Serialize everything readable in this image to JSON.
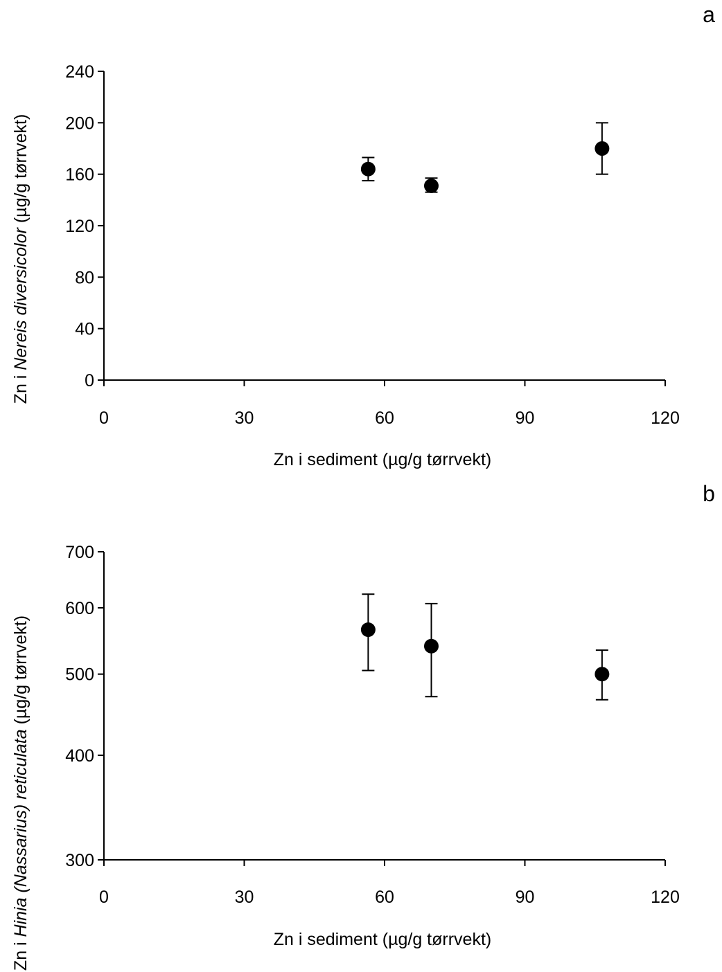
{
  "chart_data": [
    {
      "type": "scatter",
      "panel_label": "a",
      "xlabel": "Zn i sediment (µg/g tørrvekt)",
      "ylabel_parts": [
        {
          "text": "Zn i ",
          "italic": false
        },
        {
          "text": "Nereis diversicolor",
          "italic": true
        },
        {
          "text": " (µg/g tørrvekt)",
          "italic": false
        }
      ],
      "xlim": [
        0,
        120
      ],
      "ylim": [
        0,
        240
      ],
      "y_scale": "linear",
      "xticks": [
        0,
        30,
        60,
        90,
        120
      ],
      "yticks": [
        0,
        40,
        80,
        120,
        160,
        200,
        240
      ],
      "xtick_labels": [
        "0",
        "30",
        "60",
        "90",
        "120"
      ],
      "ytick_labels": [
        "0",
        "40",
        "80",
        "120",
        "160",
        "200",
        "240"
      ],
      "grid": false,
      "points": [
        {
          "x": 56.5,
          "y": 164,
          "err_low": 155,
          "err_high": 173
        },
        {
          "x": 70,
          "y": 151,
          "err_low": 146,
          "err_high": 157
        },
        {
          "x": 106.5,
          "y": 180,
          "err_low": 160,
          "err_high": 200
        }
      ]
    },
    {
      "type": "scatter",
      "panel_label": "b",
      "xlabel": "Zn i sediment (µg/g tørrvekt)",
      "ylabel_parts": [
        {
          "text": "Zn i ",
          "italic": false
        },
        {
          "text": "Hinia (Nassarius) reticulata",
          "italic": true
        },
        {
          "text": " (µg/g tørrvekt)",
          "italic": false
        }
      ],
      "xlim": [
        0,
        120
      ],
      "ylim": [
        300,
        700
      ],
      "y_scale": "log",
      "xticks": [
        0,
        30,
        60,
        90,
        120
      ],
      "yticks": [
        300,
        400,
        500,
        600,
        700
      ],
      "xtick_labels": [
        "0",
        "30",
        "60",
        "90",
        "120"
      ],
      "ytick_labels": [
        "300",
        "400",
        "500",
        "600",
        "700"
      ],
      "grid": false,
      "points": [
        {
          "x": 56.5,
          "y": 565,
          "err_low": 505,
          "err_high": 623
        },
        {
          "x": 70,
          "y": 540,
          "err_low": 470,
          "err_high": 607
        },
        {
          "x": 106.5,
          "y": 500,
          "err_low": 466,
          "err_high": 534
        }
      ]
    }
  ]
}
